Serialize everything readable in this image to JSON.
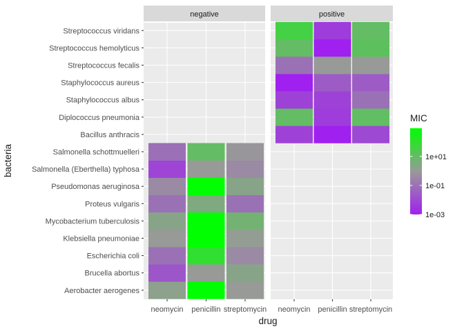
{
  "chart_data": {
    "type": "heatmap",
    "xlabel": "drug",
    "ylabel": "bacteria",
    "x_categories": [
      "neomycin",
      "penicillin",
      "streptomycin"
    ],
    "y_categories": [
      "Aerobacter aerogenes",
      "Brucella abortus",
      "Escherichia coli",
      "Klebsiella pneumoniae",
      "Mycobacterium tuberculosis",
      "Proteus vulgaris",
      "Pseudomonas aeruginosa",
      "Salmonella (Eberthella) typhosa",
      "Salmonella schottmuelleri",
      "Bacillus anthracis",
      "Diplococcus pneumonia",
      "Staphylococcus albus",
      "Staphylococcus aureus",
      "Streptococcus fecalis",
      "Streptococcus hemolyticus",
      "Streptococcus viridans"
    ],
    "facets": [
      {
        "label": "negative",
        "rows": [
          {
            "bacteria": "Aerobacter aerogenes",
            "values": [
              1.6,
              870,
              1
            ]
          },
          {
            "bacteria": "Brucella abortus",
            "values": [
              0.02,
              1,
              2
            ]
          },
          {
            "bacteria": "Escherichia coli",
            "values": [
              0.1,
              100,
              0.4
            ]
          },
          {
            "bacteria": "Klebsiella pneumoniae",
            "values": [
              1,
              850,
              1.2
            ]
          },
          {
            "bacteria": "Mycobacterium tuberculosis",
            "values": [
              2,
              800,
              5
            ]
          },
          {
            "bacteria": "Proteus vulgaris",
            "values": [
              0.1,
              3,
              0.1
            ]
          },
          {
            "bacteria": "Pseudomonas aeruginosa",
            "values": [
              0.4,
              850,
              2
            ]
          },
          {
            "bacteria": "Salmonella (Eberthella) typhosa",
            "values": [
              0.008,
              1,
              0.4
            ]
          },
          {
            "bacteria": "Salmonella schottmuelleri",
            "values": [
              0.09,
              10,
              0.8
            ]
          }
        ]
      },
      {
        "label": "positive",
        "rows": [
          {
            "bacteria": "Bacillus anthracis",
            "values": [
              0.007,
              0.001,
              0.01
            ]
          },
          {
            "bacteria": "Diplococcus pneumonia",
            "values": [
              10,
              0.005,
              11
            ]
          },
          {
            "bacteria": "Staphylococcus albus",
            "values": [
              0.007,
              0.007,
              0.1
            ]
          },
          {
            "bacteria": "Staphylococcus aureus",
            "values": [
              0.001,
              0.03,
              0.03
            ]
          },
          {
            "bacteria": "Streptococcus fecalis",
            "values": [
              0.1,
              1,
              1
            ]
          },
          {
            "bacteria": "Streptococcus hemolyticus",
            "values": [
              10,
              0.001,
              14
            ]
          },
          {
            "bacteria": "Streptococcus viridans",
            "values": [
              40,
              0.005,
              10
            ]
          }
        ]
      }
    ],
    "legend": {
      "title": "MIC",
      "position": "right",
      "scale": "log10",
      "range": [
        0.001,
        870
      ],
      "breaks": [
        0.001,
        0.1,
        10
      ],
      "break_labels": [
        "1e-03",
        "1e-01",
        "1e+01"
      ],
      "colors": {
        "low": "#a020f0",
        "mid": "#999999",
        "high": "#00ff00"
      }
    },
    "grid": true,
    "panel_background": "#ebebeb",
    "strip_background": "#d9d9d9",
    "gridline_color": "#ffffff"
  }
}
